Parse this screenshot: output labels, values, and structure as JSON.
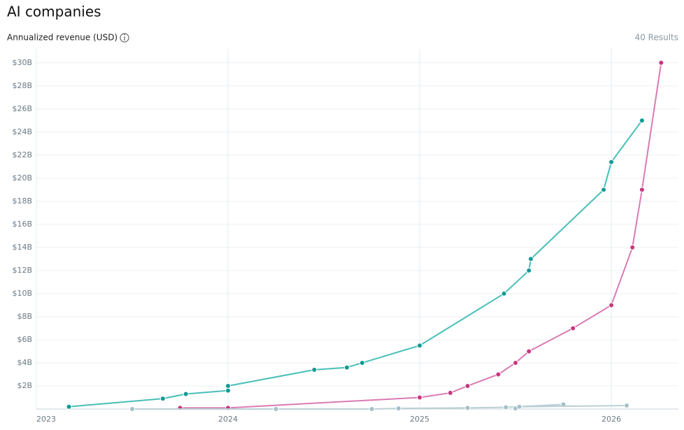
{
  "chart_data": {
    "type": "line",
    "title": "AI companies",
    "y_label": "Annualized revenue (USD)",
    "results": "40 Results",
    "xlim": [
      2023,
      2026.35
    ],
    "xticks": [
      2023,
      2024,
      2025,
      2026
    ],
    "ylim": [
      0,
      31.2
    ],
    "yticks": [
      {
        "value": 2,
        "label": "$2B"
      },
      {
        "value": 4,
        "label": "$4B"
      },
      {
        "value": 6,
        "label": "$6B"
      },
      {
        "value": 8,
        "label": "$8B"
      },
      {
        "value": 10,
        "label": "$10B"
      },
      {
        "value": 12,
        "label": "$12B"
      },
      {
        "value": 14,
        "label": "$14B"
      },
      {
        "value": 16,
        "label": "$16B"
      },
      {
        "value": 18,
        "label": "$18B"
      },
      {
        "value": 20,
        "label": "$20B"
      },
      {
        "value": 22,
        "label": "$22B"
      },
      {
        "value": 24,
        "label": "$24B"
      },
      {
        "value": 26,
        "label": "$26B"
      },
      {
        "value": 28,
        "label": "$28B"
      },
      {
        "value": 30,
        "label": "$30B"
      }
    ],
    "grid": true,
    "series": [
      {
        "color": "#48bfb8",
        "point_color": "#109a93",
        "x": [
          2023.17,
          2023.66,
          2023.78,
          2024.0,
          2024.0,
          2024.45,
          2024.62,
          2024.7,
          2025.0,
          2025.44,
          2025.57,
          2025.58,
          2025.96,
          2026.0,
          2026.16
        ],
        "values": [
          0.2,
          0.9,
          1.3,
          1.6,
          2.0,
          3.4,
          3.6,
          4.0,
          5.5,
          10.0,
          12.0,
          13.0,
          19.0,
          21.4,
          25.0
        ]
      },
      {
        "color": "#d97bb3",
        "point_color": "#c8377f",
        "x": [
          2023.75,
          2024.0,
          2025.0,
          2025.16,
          2025.25,
          2025.41,
          2025.5,
          2025.57,
          2025.8,
          2026.0,
          2026.11,
          2026.16,
          2026.26
        ],
        "values": [
          0.1,
          0.1,
          1.0,
          1.4,
          2.0,
          3.0,
          4.0,
          5.0,
          7.0,
          9.0,
          14.0,
          19.0,
          30.0
        ]
      },
      {
        "color": "#b9d0d6",
        "point_color": "#a3c0c8",
        "x": [
          2023.5,
          2024.25,
          2024.75,
          2024.89,
          2025.25,
          2025.45,
          2025.75
        ],
        "values": [
          0,
          0,
          0,
          0.05,
          0.1,
          0.15,
          0.4
        ]
      },
      {
        "color": "#b9d0d6",
        "point_color": "#a3c0c8",
        "x": [
          2025.5,
          2025.52,
          2026.08
        ],
        "values": [
          0.05,
          0.2,
          0.3
        ]
      }
    ]
  }
}
